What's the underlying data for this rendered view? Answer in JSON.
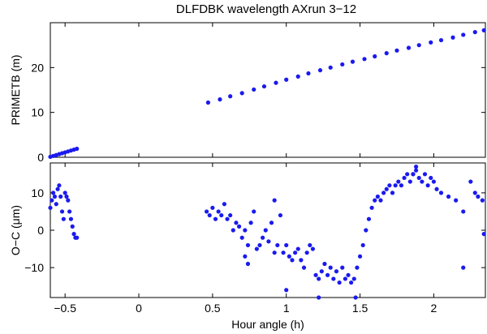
{
  "chart_data": [
    {
      "type": "scatter",
      "title": "DLFDBK wavelength AXrun 3−12",
      "xlabel": "",
      "ylabel": "PRIMETB (m)",
      "xlim": [
        -0.6,
        2.35
      ],
      "ylim": [
        0,
        30
      ],
      "yticks": [
        0,
        10,
        20
      ],
      "xticks": [
        -0.5,
        0,
        0.5,
        1,
        1.5,
        2
      ],
      "xtick_labels": [],
      "color": "#1a1aee",
      "series": [
        {
          "x": [
            -0.6,
            -0.58,
            -0.56,
            -0.54,
            -0.52,
            -0.5,
            -0.48,
            -0.46,
            -0.44,
            -0.42,
            0.47,
            0.55,
            0.62,
            0.7,
            0.78,
            0.85,
            0.93,
            1.0,
            1.08,
            1.15,
            1.23,
            1.3,
            1.38,
            1.45,
            1.53,
            1.6,
            1.68,
            1.75,
            1.83,
            1.9,
            1.98,
            2.05,
            2.13,
            2.2,
            2.28,
            2.34
          ],
          "y": [
            0.1,
            0.3,
            0.5,
            0.7,
            0.9,
            1.1,
            1.3,
            1.5,
            1.7,
            1.9,
            12.2,
            12.9,
            13.6,
            14.3,
            15.1,
            15.8,
            16.6,
            17.3,
            18.0,
            18.7,
            19.4,
            20.0,
            20.7,
            21.3,
            21.9,
            22.5,
            23.2,
            23.8,
            24.4,
            25.0,
            25.6,
            26.1,
            26.7,
            27.3,
            27.9,
            28.3
          ]
        }
      ]
    },
    {
      "type": "scatter",
      "title": "",
      "xlabel": "Hour angle (h)",
      "ylabel": "O−C (μm)",
      "xlim": [
        -0.6,
        2.35
      ],
      "ylim": [
        -18,
        18
      ],
      "yticks": [
        -10,
        0,
        10
      ],
      "xticks": [
        -0.5,
        0,
        0.5,
        1,
        1.5,
        2
      ],
      "xtick_labels": [
        "−0.5",
        "0",
        "0.5",
        "1",
        "1.5",
        "2"
      ],
      "color": "#1a1aee",
      "series": [
        {
          "x": [
            -0.6,
            -0.59,
            -0.58,
            -0.57,
            -0.56,
            -0.55,
            -0.54,
            -0.53,
            -0.52,
            -0.51,
            -0.5,
            -0.49,
            -0.48,
            -0.47,
            -0.46,
            -0.45,
            -0.44,
            -0.43,
            -0.42,
            0.46,
            0.48,
            0.5,
            0.52,
            0.54,
            0.56,
            0.58,
            0.6,
            0.62,
            0.64,
            0.66,
            0.68,
            0.7,
            0.72,
            0.74,
            0.76,
            0.78,
            0.8,
            0.82,
            0.84,
            0.86,
            0.88,
            0.9,
            0.92,
            0.94,
            0.96,
            0.98,
            1.0,
            1.02,
            1.04,
            1.06,
            1.08,
            1.1,
            1.12,
            1.14,
            1.16,
            1.18,
            1.2,
            1.22,
            1.24,
            1.26,
            1.28,
            1.3,
            1.32,
            1.34,
            1.36,
            1.38,
            1.4,
            1.42,
            1.44,
            1.46,
            1.48,
            1.5,
            1.52,
            1.54,
            1.56,
            1.58,
            1.6,
            1.62,
            1.64,
            1.66,
            1.68,
            1.7,
            1.72,
            1.74,
            1.76,
            1.78,
            1.8,
            1.82,
            1.84,
            1.86,
            1.88,
            1.9,
            1.92,
            1.94,
            1.96,
            1.98,
            2.0,
            2.02,
            2.05,
            2.1,
            2.15,
            2.2,
            2.25,
            2.28,
            2.3,
            2.33,
            0.72,
            0.74,
            0.92,
            1.0,
            1.22,
            1.47,
            2.2,
            2.34,
            1.88,
            1.86
          ],
          "y": [
            6,
            8,
            10,
            9,
            7,
            11,
            12,
            9,
            5,
            3,
            10,
            9,
            8,
            5,
            3,
            1,
            -1,
            -2,
            -2,
            5,
            4,
            6,
            3,
            5,
            4,
            7,
            3,
            4,
            0,
            2,
            1,
            -2,
            0,
            -4,
            2,
            5,
            -5,
            -4,
            -2,
            0,
            -3,
            2,
            -6,
            -4,
            4,
            -6,
            -4,
            -7,
            -8,
            -6,
            -5,
            -8,
            -10,
            -6,
            -4,
            -5,
            -12,
            -13,
            -11,
            -9,
            -12,
            -10,
            -13,
            -11,
            -14,
            -10,
            -13,
            -12,
            -14,
            -13,
            -10,
            -7,
            -4,
            0,
            3,
            6,
            8,
            9,
            8,
            10,
            11,
            12,
            10,
            12,
            13,
            12,
            14,
            15,
            13,
            15,
            17,
            14,
            13,
            15,
            12,
            14,
            13,
            11,
            10,
            9,
            8,
            -10,
            13,
            10,
            9,
            8,
            -7,
            -9,
            8,
            -16,
            -18,
            -18,
            5,
            -1,
            16,
            15
          ]
        }
      ]
    }
  ]
}
